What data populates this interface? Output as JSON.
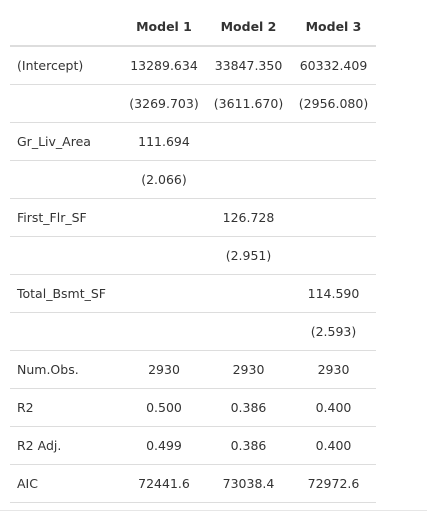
{
  "table": {
    "headers": [
      "",
      "Model 1",
      "Model 2",
      "Model 3"
    ],
    "rows": [
      [
        "(Intercept)",
        "13289.634",
        "33847.350",
        "60332.409"
      ],
      [
        "",
        "(3269.703)",
        "(3611.670)",
        "(2956.080)"
      ],
      [
        "Gr_Liv_Area",
        "111.694",
        "",
        ""
      ],
      [
        "",
        "(2.066)",
        "",
        ""
      ],
      [
        "First_Flr_SF",
        "",
        "126.728",
        ""
      ],
      [
        "",
        "",
        "(2.951)",
        ""
      ],
      [
        "Total_Bsmt_SF",
        "",
        "",
        "114.590"
      ],
      [
        "",
        "",
        "",
        "(2.593)"
      ],
      [
        "Num.Obs.",
        "2930",
        "2930",
        "2930"
      ],
      [
        "R2",
        "0.500",
        "0.386",
        "0.400"
      ],
      [
        "R2 Adj.",
        "0.499",
        "0.386",
        "0.400"
      ],
      [
        "AIC",
        "72441.6",
        "73038.4",
        "72972.6"
      ]
    ]
  }
}
